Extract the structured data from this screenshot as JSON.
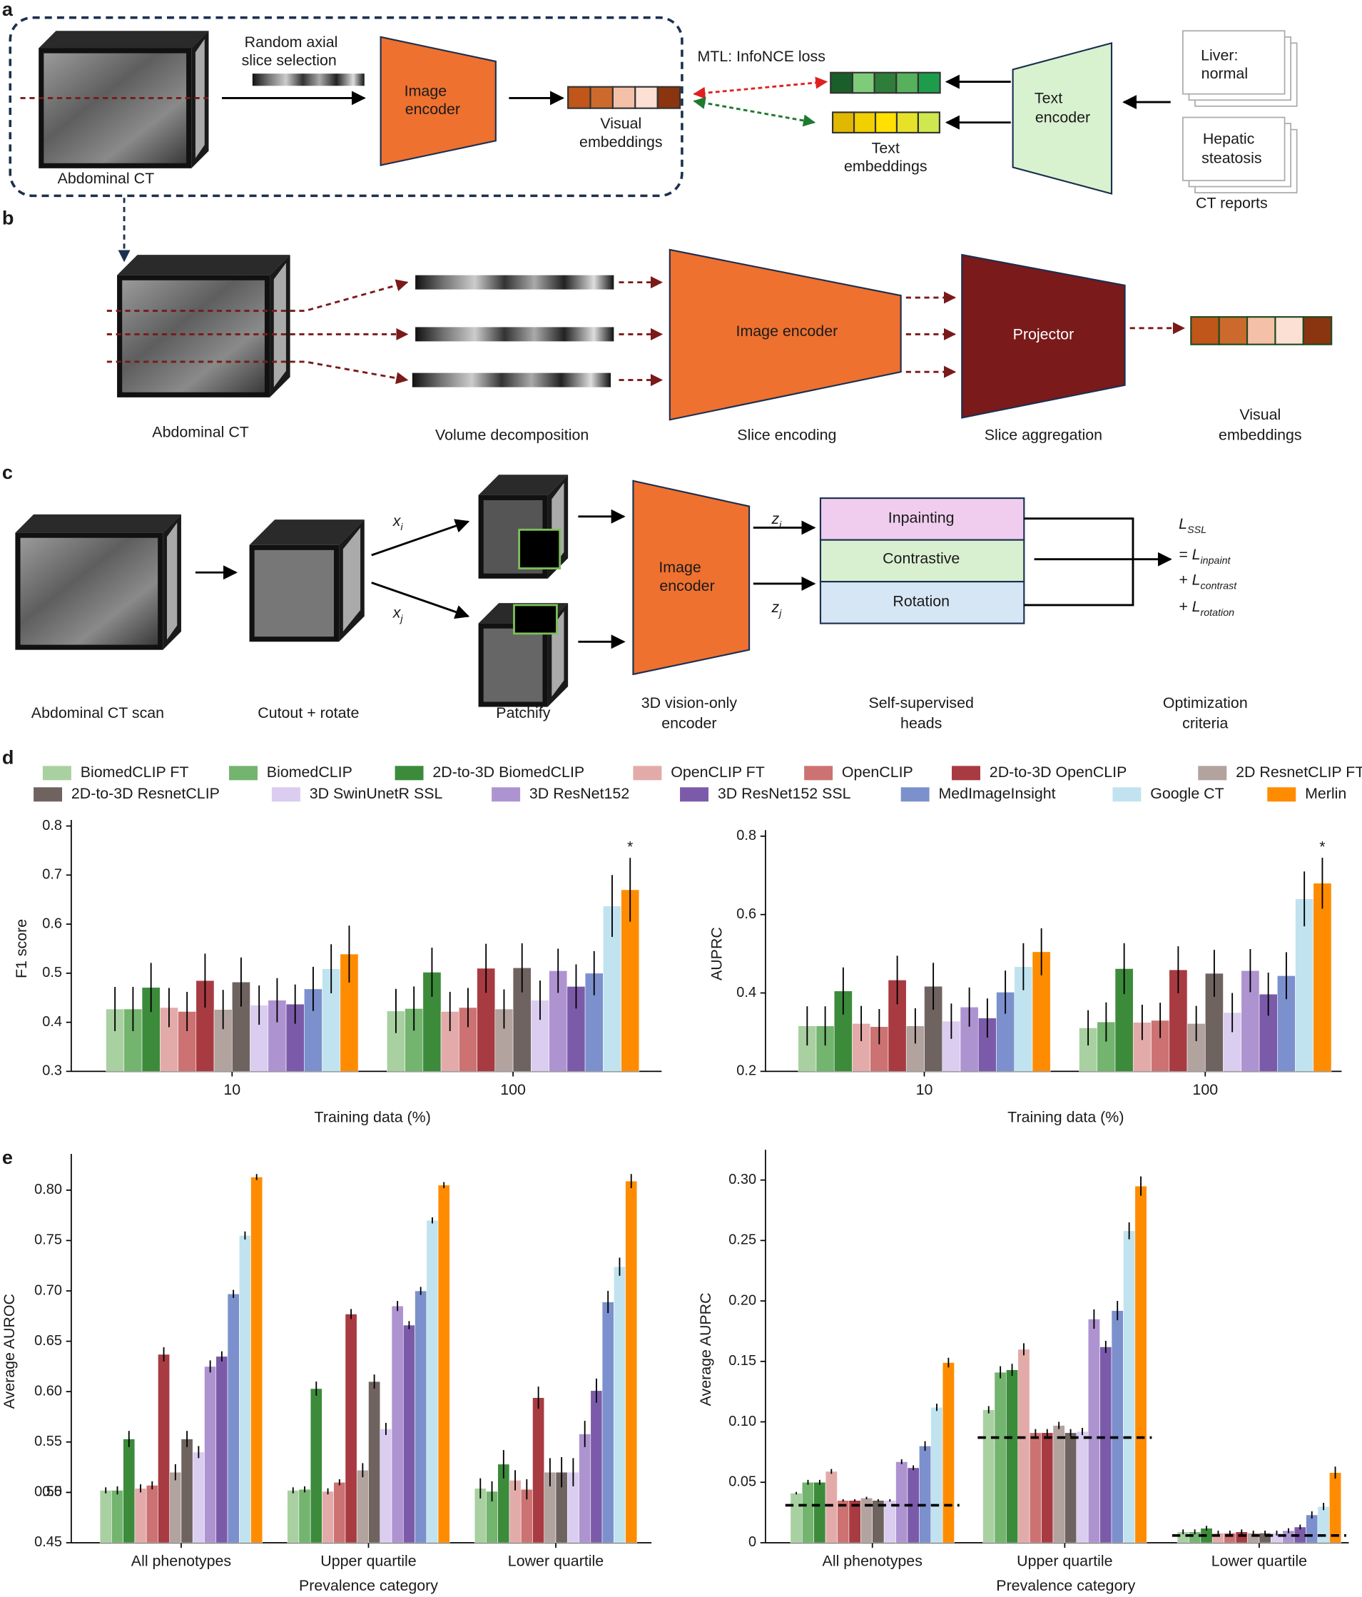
{
  "figure": {
    "panel_labels": [
      "a",
      "b",
      "c",
      "d",
      "e"
    ],
    "a": {
      "slice_selection": [
        "Random axial",
        "slice selection"
      ],
      "image_encoder": [
        "Image",
        "encoder"
      ],
      "visual_embeddings": [
        "Visual",
        "embeddings"
      ],
      "ct": "Abdominal CT",
      "loss": "MTL: InfoNCE loss",
      "text_embeddings": [
        "Text",
        "embeddings"
      ],
      "text_encoder": [
        "Text",
        "encoder"
      ],
      "report_1": [
        "Liver:",
        "normal"
      ],
      "report_2": [
        "Hepatic",
        "steatosis"
      ],
      "reports": "CT reports"
    },
    "b": {
      "image_encoder": "Image encoder",
      "projector": "Projector",
      "ct": "Abdominal CT",
      "volume_decomposition": "Volume decomposition",
      "slice_encoding": "Slice encoding",
      "slice_aggregation": "Slice aggregation",
      "visual_embeddings": [
        "Visual",
        "embeddings"
      ]
    },
    "c": {
      "heads": [
        "Inpainting",
        "Contrastive",
        "Rotation"
      ],
      "image_encoder": [
        "Image",
        "encoder"
      ],
      "x_i": {
        "base": "x",
        "sub": "i"
      },
      "x_j": {
        "base": "x",
        "sub": "j"
      },
      "z_i": {
        "base": "z",
        "sub": "i"
      },
      "z_j": {
        "base": "z",
        "sub": "j"
      },
      "loss": [
        {
          "base": "L",
          "sub": "SSL"
        },
        {
          "base": "= L",
          "sub": "inpaint"
        },
        {
          "base": "+ L",
          "sub": "contrast"
        },
        {
          "base": "+ L",
          "sub": "rotation"
        }
      ],
      "steps": {
        "ct": "Abdominal CT scan",
        "cutout": "Cutout + rotate",
        "patchify": "Patchify",
        "encoder": [
          "3D vision-only",
          "encoder"
        ],
        "heads": [
          "Self-supervised",
          "heads"
        ],
        "criteria": [
          "Optimization",
          "criteria"
        ]
      }
    }
  },
  "legend": [
    {
      "name": "BiomedCLIP FT",
      "color": "#a9d0a1"
    },
    {
      "name": "BiomedCLIP",
      "color": "#73b46f"
    },
    {
      "name": "2D-to-3D BiomedCLIP",
      "color": "#3b8b3b"
    },
    {
      "name": "OpenCLIP FT",
      "color": "#e2aba9"
    },
    {
      "name": "OpenCLIP",
      "color": "#cd7272"
    },
    {
      "name": "2D-to-3D OpenCLIP",
      "color": "#a83b42"
    },
    {
      "name": "2D ResnetCLIP FT",
      "color": "#b2a39f"
    },
    {
      "name": "2D-to-3D ResnetCLIP",
      "color": "#6f6360"
    },
    {
      "name": "3D SwinUnetR SSL",
      "color": "#dacdef"
    },
    {
      "name": "3D ResNet152",
      "color": "#ae93d1"
    },
    {
      "name": "3D ResNet152 SSL",
      "color": "#7b5ba9"
    },
    {
      "name": "MedImageInsight",
      "color": "#7c90cd"
    },
    {
      "name": "Google CT",
      "color": "#c0e3ef"
    },
    {
      "name": "Merlin",
      "color": "#ff8c00"
    }
  ],
  "chart_data": [
    {
      "type": "bar",
      "ylabel": "F1 score",
      "xlabel": "Training data (%)",
      "categories": [
        "10",
        "100"
      ],
      "ylim": [
        0.3,
        0.8
      ],
      "yticks": [
        0.3,
        0.4,
        0.5,
        0.6,
        0.7,
        0.8
      ],
      "annotation": "*",
      "series": [
        {
          "values": [
            0.427,
            0.423
          ],
          "errors": [
            0.045,
            0.045
          ]
        },
        {
          "values": [
            0.427,
            0.428
          ],
          "errors": [
            0.045,
            0.045
          ]
        },
        {
          "values": [
            0.471,
            0.502
          ],
          "errors": [
            0.05,
            0.05
          ]
        },
        {
          "values": [
            0.43,
            0.422
          ],
          "errors": [
            0.04,
            0.04
          ]
        },
        {
          "values": [
            0.422,
            0.43
          ],
          "errors": [
            0.04,
            0.04
          ]
        },
        {
          "values": [
            0.485,
            0.51
          ],
          "errors": [
            0.055,
            0.05
          ]
        },
        {
          "values": [
            0.426,
            0.427
          ],
          "errors": [
            0.04,
            0.04
          ]
        },
        {
          "values": [
            0.482,
            0.511
          ],
          "errors": [
            0.05,
            0.05
          ]
        },
        {
          "values": [
            0.435,
            0.445
          ],
          "errors": [
            0.04,
            0.04
          ]
        },
        {
          "values": [
            0.445,
            0.505
          ],
          "errors": [
            0.045,
            0.045
          ]
        },
        {
          "values": [
            0.437,
            0.473
          ],
          "errors": [
            0.04,
            0.045
          ]
        },
        {
          "values": [
            0.468,
            0.5
          ],
          "errors": [
            0.045,
            0.045
          ]
        },
        {
          "values": [
            0.509,
            0.637
          ],
          "errors": [
            0.05,
            0.063
          ]
        },
        {
          "values": [
            0.539,
            0.67
          ],
          "errors": [
            0.058,
            0.065
          ]
        }
      ]
    },
    {
      "type": "bar",
      "ylabel": "AUPRC",
      "xlabel": "Training data (%)",
      "categories": [
        "10",
        "100"
      ],
      "ylim": [
        0.2,
        0.8
      ],
      "yticks": [
        0.2,
        0.4,
        0.6,
        0.8
      ],
      "annotation": "*",
      "series": [
        {
          "values": [
            0.316,
            0.311
          ],
          "errors": [
            0.05,
            0.045
          ]
        },
        {
          "values": [
            0.316,
            0.326
          ],
          "errors": [
            0.05,
            0.05
          ]
        },
        {
          "values": [
            0.405,
            0.462
          ],
          "errors": [
            0.06,
            0.065
          ]
        },
        {
          "values": [
            0.322,
            0.325
          ],
          "errors": [
            0.045,
            0.045
          ]
        },
        {
          "values": [
            0.314,
            0.33
          ],
          "errors": [
            0.045,
            0.045
          ]
        },
        {
          "values": [
            0.433,
            0.459
          ],
          "errors": [
            0.062,
            0.06
          ]
        },
        {
          "values": [
            0.316,
            0.322
          ],
          "errors": [
            0.045,
            0.045
          ]
        },
        {
          "values": [
            0.417,
            0.45
          ],
          "errors": [
            0.06,
            0.06
          ]
        },
        {
          "values": [
            0.328,
            0.35
          ],
          "errors": [
            0.045,
            0.05
          ]
        },
        {
          "values": [
            0.364,
            0.457
          ],
          "errors": [
            0.05,
            0.055
          ]
        },
        {
          "values": [
            0.336,
            0.397
          ],
          "errors": [
            0.05,
            0.055
          ]
        },
        {
          "values": [
            0.402,
            0.444
          ],
          "errors": [
            0.055,
            0.06
          ]
        },
        {
          "values": [
            0.467,
            0.64
          ],
          "errors": [
            0.06,
            0.07
          ]
        },
        {
          "values": [
            0.505,
            0.68
          ],
          "errors": [
            0.06,
            0.065
          ]
        }
      ]
    },
    {
      "type": "bar",
      "ylabel": "Average AUROC",
      "xlabel": "Prevalence category",
      "categories": [
        "All phenotypes",
        "Upper quartile",
        "Lower quartile"
      ],
      "ylim": [
        0.45,
        0.83
      ],
      "yticks": [
        0.45,
        0.5,
        {
          "value": 0.5,
          "label": "0.50"
        },
        0.55,
        {
          "value": 0.6,
          "label": "0.60"
        },
        0.65,
        {
          "value": 0.7,
          "label": "0.70"
        },
        0.75,
        {
          "value": 0.8,
          "label": "0.80"
        }
      ],
      "series": [
        {
          "values": [
            0.502,
            0.502,
            0.504
          ],
          "errors": [
            0.003,
            0.003,
            0.01
          ]
        },
        {
          "values": [
            0.502,
            0.503,
            0.501
          ],
          "errors": [
            0.004,
            0.003,
            0.01
          ]
        },
        {
          "values": [
            0.553,
            0.603,
            0.528
          ],
          "errors": [
            0.008,
            0.007,
            0.014
          ]
        },
        {
          "values": [
            0.504,
            0.501,
            0.512
          ],
          "errors": [
            0.004,
            0.003,
            0.01
          ]
        },
        {
          "values": [
            0.507,
            0.51,
            0.503
          ],
          "errors": [
            0.004,
            0.003,
            0.01
          ]
        },
        {
          "values": [
            0.637,
            0.677,
            0.594
          ],
          "errors": [
            0.007,
            0.005,
            0.011
          ]
        },
        {
          "values": [
            0.52,
            0.522,
            0.52
          ],
          "errors": [
            0.008,
            0.007,
            0.014
          ]
        },
        {
          "values": [
            0.553,
            0.61,
            0.52
          ],
          "errors": [
            0.008,
            0.007,
            0.015
          ]
        },
        {
          "values": [
            0.54,
            0.563,
            0.52
          ],
          "errors": [
            0.006,
            0.006,
            0.014
          ]
        },
        {
          "values": [
            0.625,
            0.685,
            0.558
          ],
          "errors": [
            0.006,
            0.005,
            0.013
          ]
        },
        {
          "values": [
            0.635,
            0.666,
            0.601
          ],
          "errors": [
            0.005,
            0.004,
            0.012
          ]
        },
        {
          "values": [
            0.697,
            0.7,
            0.689
          ],
          "errors": [
            0.004,
            0.004,
            0.011
          ]
        },
        {
          "values": [
            0.755,
            0.77,
            0.724
          ],
          "errors": [
            0.004,
            0.003,
            0.009
          ]
        },
        {
          "values": [
            0.813,
            0.805,
            0.809
          ],
          "errors": [
            0.003,
            0.003,
            0.007
          ]
        }
      ]
    },
    {
      "type": "bar",
      "ylabel": "Average AUPRC",
      "xlabel": "Prevalence category",
      "categories": [
        "All phenotypes",
        "Upper quartile",
        "Lower quartile"
      ],
      "ylim": [
        0,
        0.32
      ],
      "yticks": [
        0,
        0.05,
        {
          "value": 0.1,
          "label": "0.10"
        },
        0.15,
        {
          "value": 0.2,
          "label": "0.20"
        },
        0.25,
        {
          "value": 0.3,
          "label": "0.30"
        }
      ],
      "baseline": [
        0.031,
        0.087,
        0.006
      ],
      "series": [
        {
          "values": [
            0.041,
            0.11,
            0.009
          ],
          "errors": [
            0.001,
            0.003,
            0.002
          ]
        },
        {
          "values": [
            0.05,
            0.141,
            0.009
          ],
          "errors": [
            0.002,
            0.005,
            0.002
          ]
        },
        {
          "values": [
            0.05,
            0.143,
            0.012
          ],
          "errors": [
            0.002,
            0.005,
            0.002
          ]
        },
        {
          "values": [
            0.059,
            0.16,
            0.008
          ],
          "errors": [
            0.002,
            0.005,
            0.002
          ]
        },
        {
          "values": [
            0.035,
            0.091,
            0.008
          ],
          "errors": [
            0.001,
            0.003,
            0.002
          ]
        },
        {
          "values": [
            0.035,
            0.091,
            0.009
          ],
          "errors": [
            0.001,
            0.003,
            0.002
          ]
        },
        {
          "values": [
            0.037,
            0.097,
            0.008
          ],
          "errors": [
            0.001,
            0.003,
            0.002
          ]
        },
        {
          "values": [
            0.035,
            0.091,
            0.008
          ],
          "errors": [
            0.001,
            0.003,
            0.002
          ]
        },
        {
          "values": [
            0.035,
            0.092,
            0.008
          ],
          "errors": [
            0.001,
            0.003,
            0.002
          ]
        },
        {
          "values": [
            0.067,
            0.185,
            0.01
          ],
          "errors": [
            0.002,
            0.008,
            0.002
          ]
        },
        {
          "values": [
            0.062,
            0.162,
            0.013
          ],
          "errors": [
            0.002,
            0.005,
            0.002
          ]
        },
        {
          "values": [
            0.08,
            0.192,
            0.023
          ],
          "errors": [
            0.004,
            0.008,
            0.003
          ]
        },
        {
          "values": [
            0.112,
            0.258,
            0.03
          ],
          "errors": [
            0.003,
            0.007,
            0.003
          ]
        },
        {
          "values": [
            0.149,
            0.295,
            0.058
          ],
          "errors": [
            0.004,
            0.008,
            0.005
          ]
        }
      ]
    }
  ]
}
